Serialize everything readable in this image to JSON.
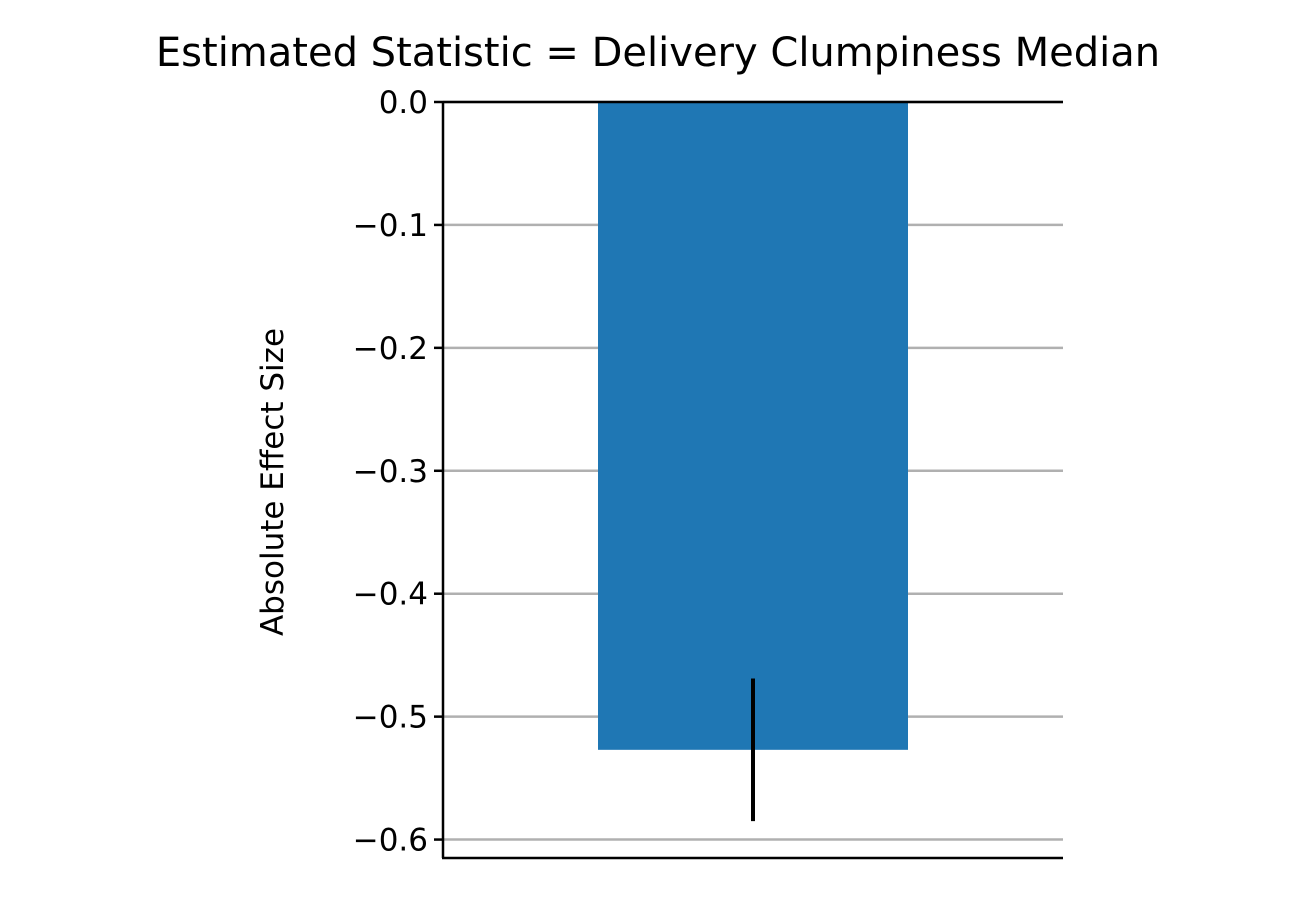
{
  "chart_data": {
    "type": "bar",
    "title": "Estimated Statistic = Delivery Clumpiness Median",
    "xlabel": "",
    "ylabel": "Absolute Effect Size",
    "categories": [
      ""
    ],
    "values": [
      -0.527
    ],
    "error_bars": [
      {
        "low": -0.585,
        "high": -0.469
      }
    ],
    "ylim": [
      -0.615,
      0.0
    ],
    "yticks": [
      0.0,
      -0.1,
      -0.2,
      -0.3,
      -0.4,
      -0.5,
      -0.6
    ],
    "ytick_labels": [
      "0.0",
      "−0.1",
      "−0.2",
      "−0.3",
      "−0.4",
      "−0.5",
      "−0.6"
    ],
    "grid": "y-major",
    "legend": "none",
    "colors": {
      "bar": "#1f77b4",
      "errorbar": "#000000",
      "grid": "#b0b0b0",
      "axis": "#000000"
    }
  }
}
